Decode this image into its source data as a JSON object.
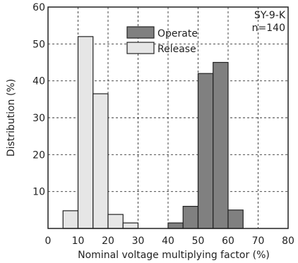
{
  "chart_data": {
    "type": "bar",
    "title": "",
    "xlabel": "Nominal voltage multiplying factor (%)",
    "ylabel": "Distribution (%)",
    "xlim": [
      0,
      80
    ],
    "ylim": [
      0,
      60
    ],
    "x_ticks": [
      "0",
      "10",
      "20",
      "30",
      "40",
      "50",
      "60",
      "70",
      "80"
    ],
    "y_ticks": [
      "10",
      "20",
      "30",
      "40",
      "50",
      "60"
    ],
    "grid": true,
    "bin_width": 5,
    "annotations": [
      "SY-9-K",
      "n=140"
    ],
    "legend": {
      "placement": "top-center"
    },
    "series": [
      {
        "name": "Operate",
        "color": "#808080",
        "bins": [
          {
            "x0": 40,
            "x1": 45,
            "value": 1.5
          },
          {
            "x0": 45,
            "x1": 50,
            "value": 6
          },
          {
            "x0": 50,
            "x1": 55,
            "value": 42
          },
          {
            "x0": 55,
            "x1": 60,
            "value": 45
          },
          {
            "x0": 60,
            "x1": 65,
            "value": 5
          }
        ]
      },
      {
        "name": "Release",
        "color": "#e6e6e6",
        "bins": [
          {
            "x0": 5,
            "x1": 10,
            "value": 4.8
          },
          {
            "x0": 10,
            "x1": 15,
            "value": 52
          },
          {
            "x0": 15,
            "x1": 20,
            "value": 36.5
          },
          {
            "x0": 20,
            "x1": 25,
            "value": 3.8
          },
          {
            "x0": 25,
            "x1": 30,
            "value": 1.5
          }
        ]
      }
    ]
  }
}
